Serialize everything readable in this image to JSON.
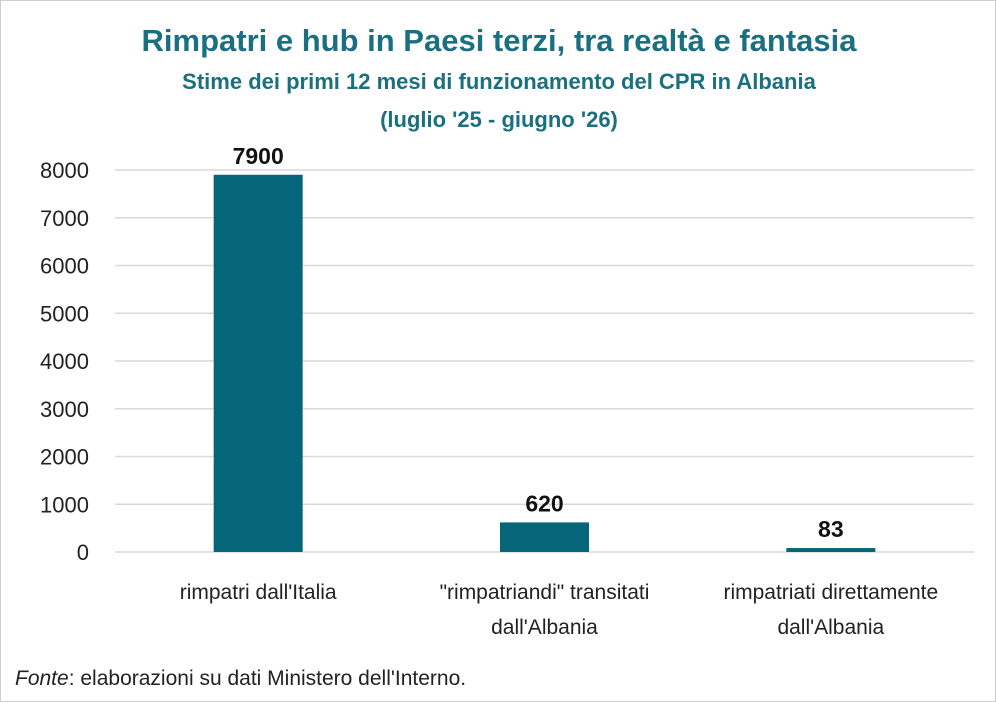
{
  "chart_data": {
    "type": "bar",
    "title": "Rimpatri e hub in Paesi terzi, tra realtà e fantasia",
    "subtitle_line1": "Stime dei primi 12 mesi di funzionamento del CPR in Albania",
    "subtitle_line2": "(luglio '25 - giugno '26)",
    "categories": [
      [
        "rimpatri dall'Italia"
      ],
      [
        "\"rimpatriandi\" transitati",
        "dall'Albania"
      ],
      [
        "rimpatriati direttamente",
        "dall'Albania"
      ]
    ],
    "values": [
      7900,
      620,
      83
    ],
    "ylim": [
      0,
      8000
    ],
    "yticks": [
      0,
      1000,
      2000,
      3000,
      4000,
      5000,
      6000,
      7000,
      8000
    ],
    "grid": true,
    "bar_color": "#05667a",
    "grid_color": "#d9d9d9"
  },
  "source": {
    "label": "Fonte",
    "text": ": elaborazioni su dati Ministero dell'Interno."
  }
}
